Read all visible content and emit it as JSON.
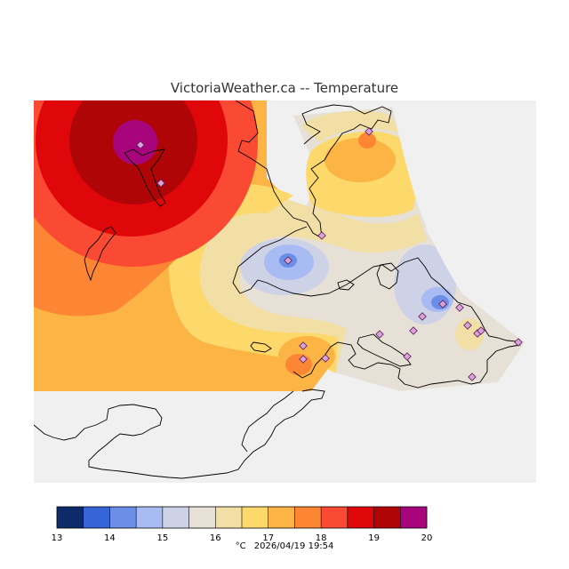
{
  "title": "VictoriaWeather.ca -- Temperature",
  "colorbar": {
    "ticks": [
      "13",
      "14",
      "15",
      "16",
      "17",
      "18",
      "19",
      "20"
    ],
    "colors": [
      "#0d2a6b",
      "#3565d6",
      "#6b8ee6",
      "#a8bbf2",
      "#cdd2e6",
      "#e6e0d6",
      "#f2dfa6",
      "#fdd86a",
      "#fcb444",
      "#fc8633",
      "#fa4a34",
      "#e0070b",
      "#b00507",
      "#a8057d"
    ]
  },
  "unit": "°C",
  "timestamp": "2026/04/19 19:54"
}
